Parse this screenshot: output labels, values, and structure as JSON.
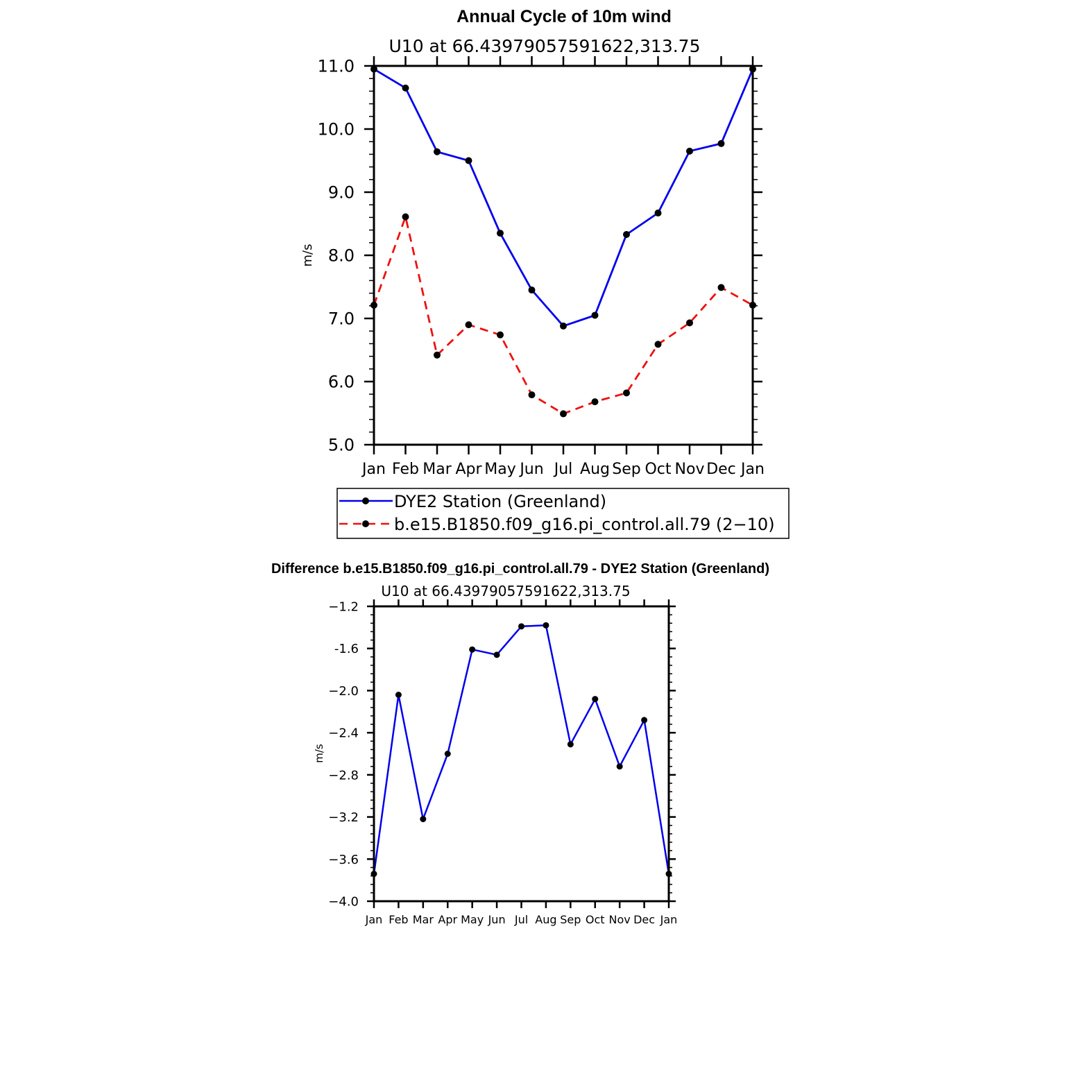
{
  "chart_data": [
    {
      "type": "line",
      "title": "Annual Cycle of 10m wind",
      "subtitle": "U10  at  66.43979057591622,313.75",
      "xlabel": "",
      "ylabel": "m/s",
      "categories": [
        "Jan",
        "Feb",
        "Mar",
        "Apr",
        "May",
        "Jun",
        "Jul",
        "Aug",
        "Sep",
        "Oct",
        "Nov",
        "Dec",
        "Jan"
      ],
      "ylim": [
        5.0,
        11.0
      ],
      "yticks": [
        "5.0",
        "6.0",
        "7.0",
        "8.0",
        "9.0",
        "10.0",
        "11.0"
      ],
      "series": [
        {
          "name": "DYE2 Station (Greenland)",
          "color": "#0000ee",
          "dash": "solid",
          "values": [
            10.95,
            10.65,
            9.64,
            9.5,
            8.35,
            7.45,
            6.88,
            7.05,
            8.33,
            8.67,
            9.65,
            9.77,
            10.95
          ]
        },
        {
          "name": "b.e15.B1850.f09_g16.pi_control.all.79  (2−10)",
          "color": "#ee1111",
          "dash": "dashed",
          "values": [
            7.21,
            8.61,
            6.42,
            6.9,
            6.74,
            5.79,
            5.49,
            5.68,
            5.82,
            6.59,
            6.93,
            7.49,
            7.21
          ]
        }
      ],
      "legend": "below"
    },
    {
      "type": "line",
      "title": "Difference b.e15.B1850.f09_g16.pi_control.all.79 - DYE2 Station (Greenland)",
      "subtitle": "U10  at  66.43979057591622,313.75",
      "xlabel": "",
      "ylabel": "m/s",
      "categories": [
        "Jan",
        "Feb",
        "Mar",
        "Apr",
        "May",
        "Jun",
        "Jul",
        "Aug",
        "Sep",
        "Oct",
        "Nov",
        "Dec",
        "Jan"
      ],
      "ylim": [
        -4.0,
        -1.2
      ],
      "yticks": [
        "−4.0",
        "−3.6",
        "−3.2",
        "−2.8",
        "−2.4",
        "−2.0",
        "-1.6",
        "−1.2"
      ],
      "series": [
        {
          "color": "#0000ee",
          "dash": "solid",
          "values": [
            -3.74,
            -2.04,
            -3.22,
            -2.6,
            -1.61,
            -1.66,
            -1.39,
            -1.38,
            -2.51,
            -2.08,
            -2.72,
            -2.28,
            -3.74
          ]
        }
      ]
    }
  ]
}
